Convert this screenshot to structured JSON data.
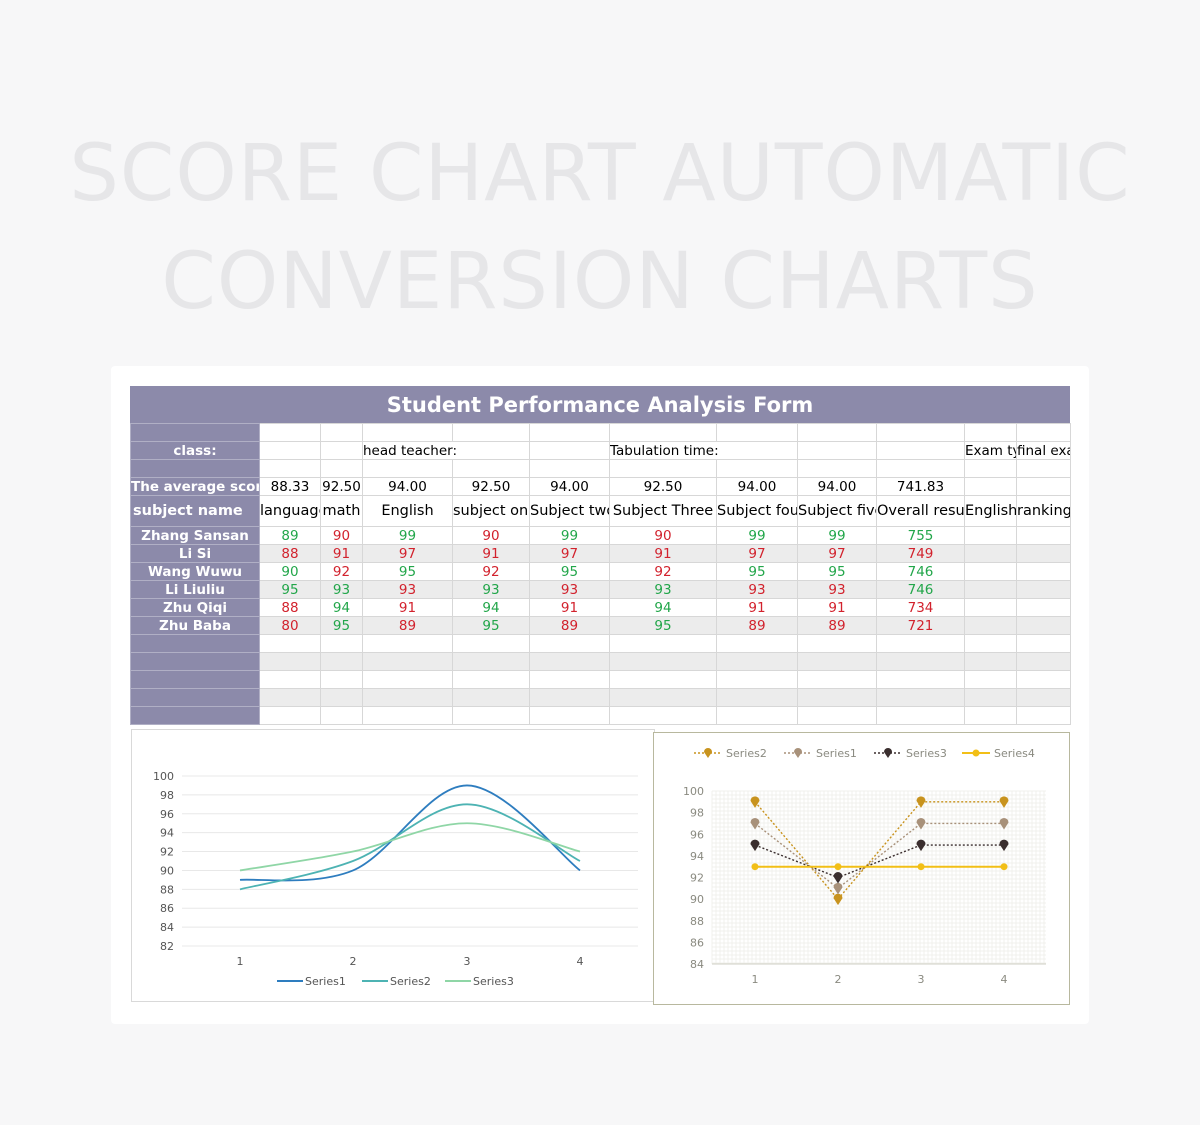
{
  "hero": {
    "line1": "SCORE CHART AUTOMATIC",
    "line2": "CONVERSION CHARTS"
  },
  "form": {
    "title": "Student Performance Analysis Form",
    "class_label": "class:",
    "head_teacher_label": "head teacher:",
    "tabulation_label": "Tabulation time:",
    "exam_type_label": "Exam type:",
    "exam_type_value": "final exam",
    "average_label": "The average score",
    "averages": [
      "88.33",
      "92.50",
      "94.00",
      "92.50",
      "94.00",
      "92.50",
      "94.00",
      "94.00",
      "741.83"
    ],
    "subject_label": "subject name",
    "subjects": [
      "language",
      "math",
      "English",
      "subject one",
      "Subject two",
      "Subject Three",
      "Subject four",
      "Subject five",
      "Overall result",
      "English",
      "ranking"
    ],
    "students": [
      {
        "name": "Zhang Sansan",
        "scores": [
          "89",
          "90",
          "99",
          "90",
          "99",
          "90",
          "99",
          "99",
          "755"
        ]
      },
      {
        "name": "Li Si",
        "scores": [
          "88",
          "91",
          "97",
          "91",
          "97",
          "91",
          "97",
          "97",
          "749"
        ]
      },
      {
        "name": "Wang Wuwu",
        "scores": [
          "90",
          "92",
          "95",
          "92",
          "95",
          "92",
          "95",
          "95",
          "746"
        ]
      },
      {
        "name": "Li Liuliu",
        "scores": [
          "95",
          "93",
          "93",
          "93",
          "93",
          "93",
          "93",
          "93",
          "746"
        ]
      },
      {
        "name": "Zhu Qiqi",
        "scores": [
          "88",
          "94",
          "91",
          "94",
          "91",
          "94",
          "91",
          "91",
          "734"
        ]
      },
      {
        "name": "Zhu Baba",
        "scores": [
          "80",
          "95",
          "89",
          "95",
          "89",
          "95",
          "89",
          "89",
          "721"
        ]
      }
    ],
    "score_colors": {
      "green": "#22a64a",
      "red": "#d2222d"
    }
  },
  "chart_data": [
    {
      "type": "line",
      "x": [
        1,
        2,
        3,
        4
      ],
      "ylim": [
        82,
        100
      ],
      "yticks": [
        82,
        84,
        86,
        88,
        90,
        92,
        94,
        96,
        98,
        100
      ],
      "series": [
        {
          "name": "Series1",
          "values": [
            89,
            90,
            99,
            90
          ],
          "color": "#2e7dbf"
        },
        {
          "name": "Series2",
          "values": [
            88,
            91,
            97,
            91
          ],
          "color": "#4db3b3"
        },
        {
          "name": "Series3",
          "values": [
            90,
            92,
            95,
            92
          ],
          "color": "#8fd6a6"
        }
      ],
      "legend": "bottom"
    },
    {
      "type": "line",
      "x": [
        1,
        2,
        3,
        4
      ],
      "ylim": [
        84,
        100
      ],
      "yticks": [
        84,
        86,
        88,
        90,
        92,
        94,
        96,
        98,
        100
      ],
      "series": [
        {
          "name": "Series2",
          "values": [
            99,
            90,
            99,
            99
          ],
          "color": "#c8931e"
        },
        {
          "name": "Series1",
          "values": [
            97,
            91,
            97,
            97
          ],
          "color": "#a8917a"
        },
        {
          "name": "Series3",
          "values": [
            95,
            92,
            95,
            95
          ],
          "color": "#3a2e2e"
        },
        {
          "name": "Series4",
          "values": [
            93,
            93,
            93,
            93
          ],
          "color": "#f2bf17"
        }
      ],
      "legend": "top"
    }
  ]
}
